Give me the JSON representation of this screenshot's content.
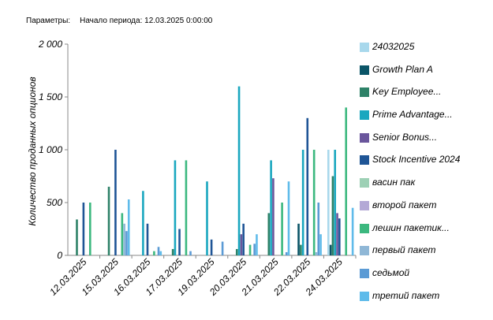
{
  "header": {
    "params_label": "Параметры:",
    "period_label": "Начало периода: 12.03.2025 0:00:00"
  },
  "chart_data": {
    "type": "bar",
    "title": "",
    "xlabel": "",
    "ylabel": "Количество проданных опционов",
    "ylim": [
      0,
      2000
    ],
    "yticks": [
      0,
      500,
      1000,
      1500,
      2000
    ],
    "ytick_labels": [
      "0",
      "500",
      "1 000",
      "1 500",
      "2 000"
    ],
    "grid": false,
    "legend_position": "right",
    "categories": [
      "12.03.2025",
      "15.03.2025",
      "16.03.2025",
      "17.03.2025",
      "19.03.2025",
      "20.03.2025",
      "21.03.2025",
      "22.03.2025",
      "24.03.2025"
    ],
    "series": [
      {
        "name": "24032025",
        "color": "#a8d8ec",
        "values": [
          0,
          0,
          0,
          0,
          0,
          0,
          0,
          0,
          1000
        ]
      },
      {
        "name": "Growth Plan A",
        "color": "#0b5568",
        "values": [
          0,
          0,
          0,
          0,
          0,
          0,
          0,
          300,
          100
        ]
      },
      {
        "name": "Key Employee...",
        "color": "#2e8268",
        "values": [
          340,
          650,
          0,
          60,
          0,
          60,
          400,
          100,
          750
        ]
      },
      {
        "name": "Prime Advantage...",
        "color": "#1aa7bf",
        "values": [
          0,
          0,
          610,
          900,
          700,
          1600,
          900,
          1000,
          1000
        ]
      },
      {
        "name": "Senior Bonus...",
        "color": "#6a569c",
        "values": [
          0,
          0,
          0,
          0,
          0,
          200,
          730,
          0,
          400
        ]
      },
      {
        "name": "Stock Incentive 2024",
        "color": "#1f5596",
        "values": [
          500,
          1000,
          300,
          250,
          150,
          300,
          0,
          1300,
          350
        ]
      },
      {
        "name": "васин пак",
        "color": "#9dd0b5",
        "values": [
          0,
          0,
          0,
          0,
          0,
          0,
          0,
          0,
          0
        ]
      },
      {
        "name": "второй пакет",
        "color": "#b3a9d6",
        "values": [
          0,
          0,
          0,
          0,
          0,
          0,
          0,
          0,
          0
        ]
      },
      {
        "name": "лешин пакетик...",
        "color": "#3cb87f",
        "values": [
          500,
          400,
          40,
          900,
          0,
          100,
          500,
          1000,
          1400
        ]
      },
      {
        "name": "первый пакет",
        "color": "#8fb7d6",
        "values": [
          0,
          300,
          0,
          0,
          0,
          0,
          0,
          30,
          0
        ]
      },
      {
        "name": "седьмой",
        "color": "#5b9bd5",
        "values": [
          0,
          230,
          80,
          40,
          130,
          110,
          30,
          500,
          0
        ]
      },
      {
        "name": "третий пакет",
        "color": "#5fbbea",
        "values": [
          0,
          530,
          40,
          0,
          0,
          200,
          700,
          200,
          450
        ]
      }
    ]
  }
}
